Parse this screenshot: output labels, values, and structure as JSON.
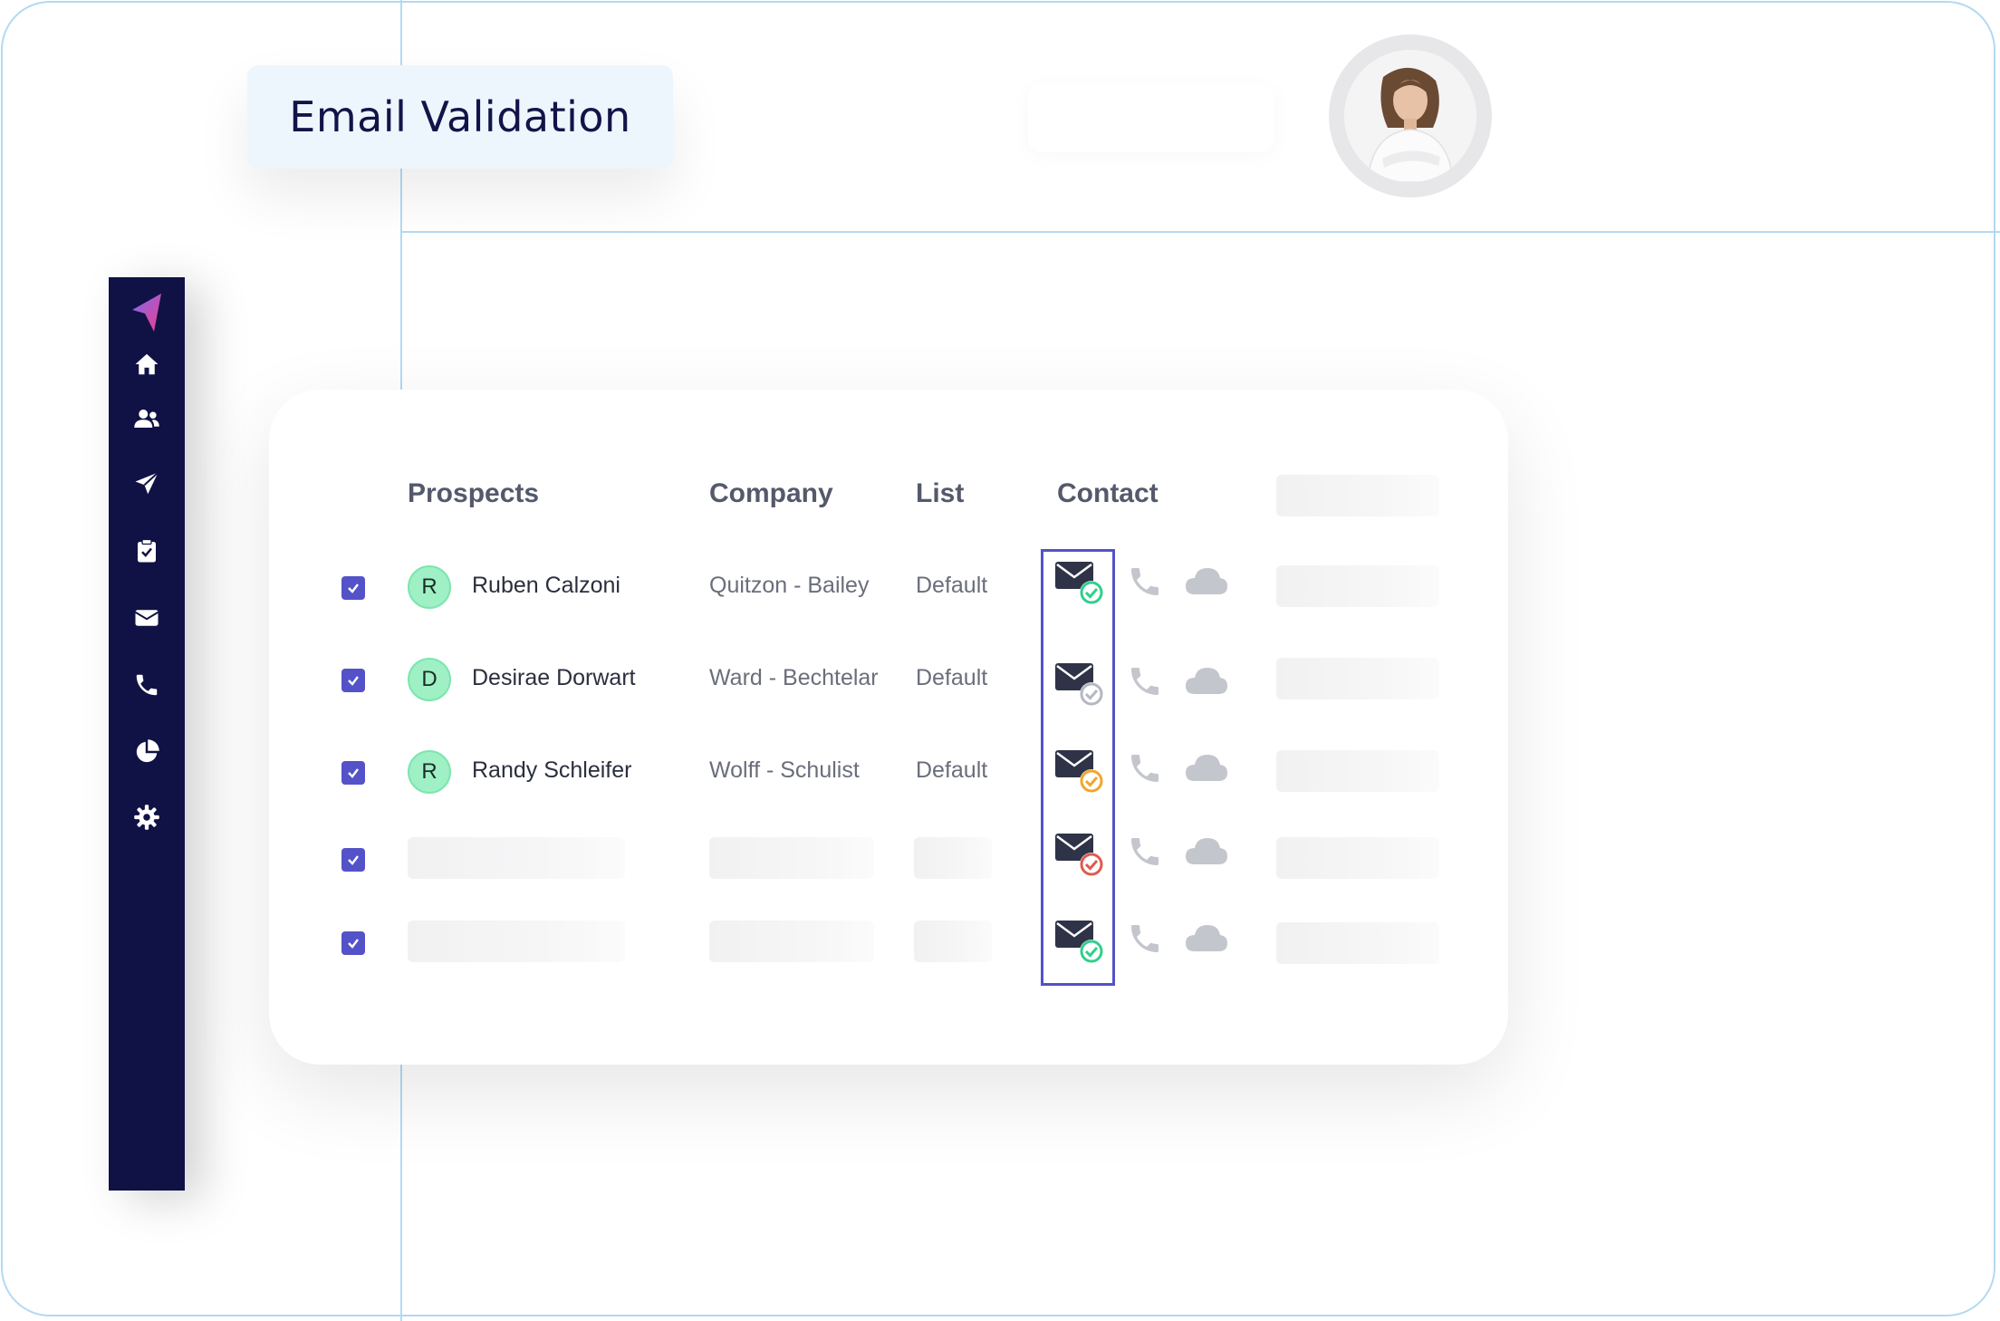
{
  "title": "Email Validation",
  "colors": {
    "sidebar": "#101245",
    "accent": "#5452c8",
    "frame_line": "#b3d9f2",
    "valid": "#2fd08a",
    "unknown": "#b5b8c2",
    "risky": "#f1a62a",
    "invalid": "#e05a4f"
  },
  "sidebar": {
    "logo": "arrow-logo-icon",
    "items": [
      {
        "icon": "home-icon"
      },
      {
        "icon": "users-icon"
      },
      {
        "icon": "send-icon"
      },
      {
        "icon": "clipboard-check-icon"
      },
      {
        "icon": "mail-icon"
      },
      {
        "icon": "phone-icon"
      },
      {
        "icon": "pie-chart-icon"
      },
      {
        "icon": "gear-icon"
      }
    ]
  },
  "table": {
    "columns": [
      "Prospects",
      "Company",
      "List",
      "Contact"
    ],
    "rows": [
      {
        "checked": true,
        "initial": "R",
        "name": "Ruben Calzoni",
        "company": "Quitzon - Bailey",
        "list": "Default",
        "email_status": "valid"
      },
      {
        "checked": true,
        "initial": "D",
        "name": "Desirae Dorwart",
        "company": "Ward - Bechtelar",
        "list": "Default",
        "email_status": "unknown"
      },
      {
        "checked": true,
        "initial": "R",
        "name": "Randy Schleifer",
        "company": "Wolff - Schulist",
        "list": "Default",
        "email_status": "risky"
      },
      {
        "checked": true,
        "initial": "",
        "name": "",
        "company": "",
        "list": "",
        "email_status": "invalid"
      },
      {
        "checked": true,
        "initial": "",
        "name": "",
        "company": "",
        "list": "",
        "email_status": "valid"
      }
    ]
  }
}
